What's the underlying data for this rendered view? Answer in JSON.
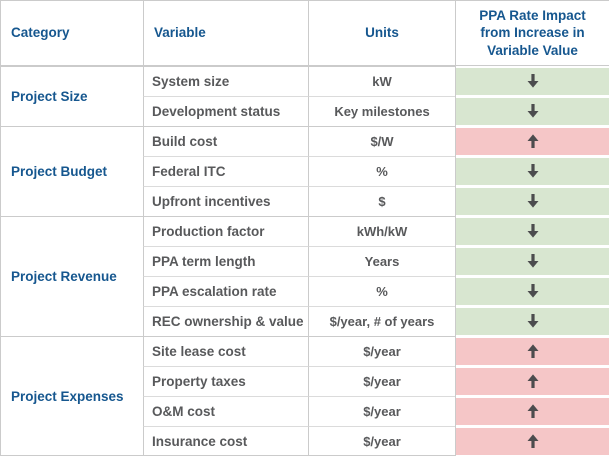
{
  "table": {
    "columns": [
      {
        "label": "Category"
      },
      {
        "label": "Variable"
      },
      {
        "label": "Units"
      },
      {
        "label": "PPA Rate Impact from Increase in Variable Value"
      }
    ],
    "groups": [
      {
        "category": "Project Size",
        "rows": [
          {
            "variable": "System size",
            "units": "kW",
            "impact": "down"
          },
          {
            "variable": "Development status",
            "units": "Key milestones",
            "impact": "down"
          }
        ]
      },
      {
        "category": "Project Budget",
        "rows": [
          {
            "variable": "Build cost",
            "units": "$/W",
            "impact": "up"
          },
          {
            "variable": "Federal ITC",
            "units": "%",
            "impact": "down"
          },
          {
            "variable": "Upfront incentives",
            "units": "$",
            "impact": "down"
          }
        ]
      },
      {
        "category": "Project Revenue",
        "rows": [
          {
            "variable": "Production factor",
            "units": "kWh/kW",
            "impact": "down"
          },
          {
            "variable": "PPA term length",
            "units": "Years",
            "impact": "down"
          },
          {
            "variable": "PPA escalation rate",
            "units": "%",
            "impact": "down"
          },
          {
            "variable": "REC ownership & value",
            "units": "$/year, # of years",
            "impact": "down"
          }
        ]
      },
      {
        "category": "Project Expenses",
        "rows": [
          {
            "variable": "Site lease cost",
            "units": "$/year",
            "impact": "up"
          },
          {
            "variable": "Property taxes",
            "units": "$/year",
            "impact": "up"
          },
          {
            "variable": "O&M cost",
            "units": "$/year",
            "impact": "up"
          },
          {
            "variable": "Insurance cost",
            "units": "$/year",
            "impact": "up"
          }
        ]
      }
    ],
    "impact_legend": {
      "down_meaning": "PPA rate decreases",
      "up_meaning": "PPA rate increases"
    },
    "colors": {
      "heading_blue": "#16578f",
      "body_text_gray": "#58595b",
      "impact_down_green": "#d8e6d0",
      "impact_up_pink": "#f5c6c7",
      "arrow_gray": "#4c4c4e",
      "grid_border": "#cbcbcb"
    }
  }
}
